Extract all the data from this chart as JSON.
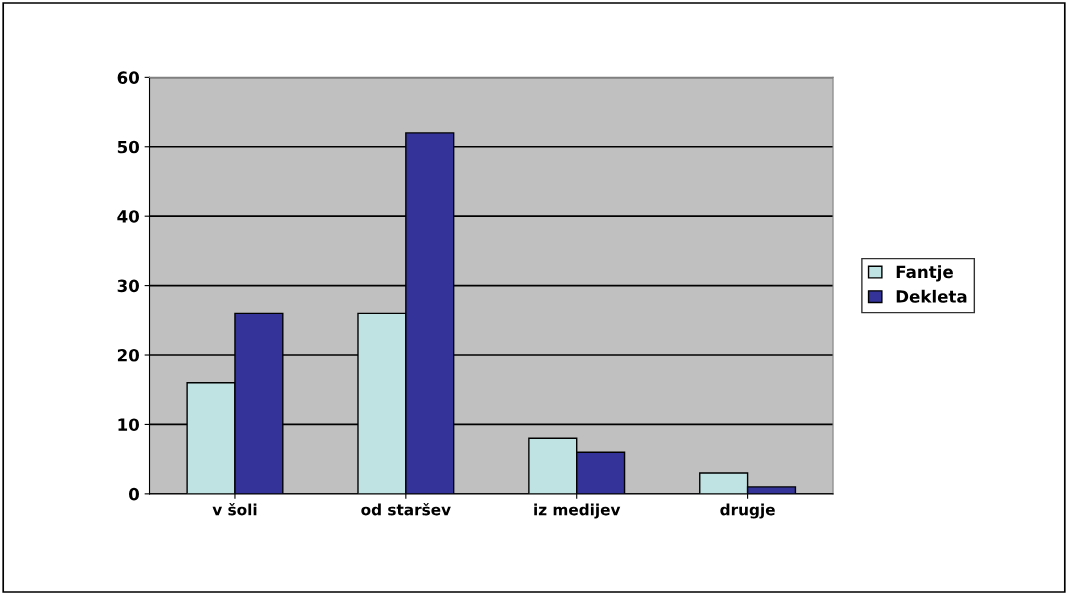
{
  "chart_data": {
    "type": "bar",
    "categories": [
      "v šoli",
      "od staršev",
      "iz medijev",
      "drugje"
    ],
    "series": [
      {
        "name": "Fantje",
        "color": "#bfe3e3",
        "values": [
          16,
          26,
          8,
          3
        ]
      },
      {
        "name": "Dekleta",
        "color": "#333399",
        "values": [
          26,
          52,
          6,
          1
        ]
      }
    ],
    "ylim": [
      0,
      60
    ],
    "yticks": [
      0,
      10,
      20,
      30,
      40,
      50,
      60
    ],
    "grid": "y",
    "legend": "right"
  }
}
